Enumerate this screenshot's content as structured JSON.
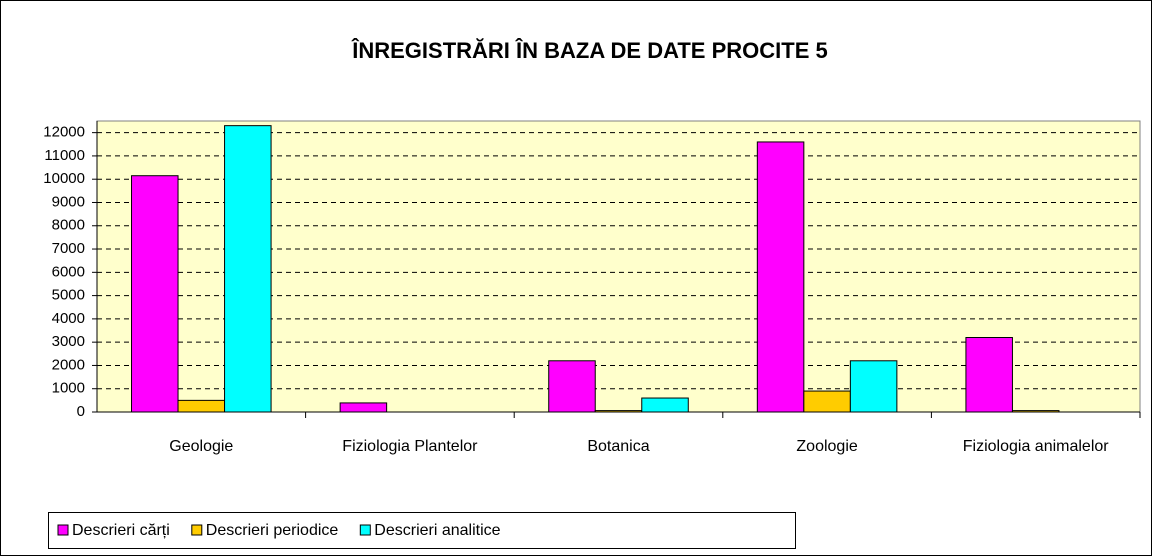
{
  "chart_data": {
    "type": "bar",
    "title": "ÎNREGISTRĂRI ÎN BAZA DE DATE PROCITE 5",
    "categories": [
      "Geologie",
      "Fiziologia Plantelor",
      "Botanica",
      "Zoologie",
      "Fiziologia animalelor"
    ],
    "series": [
      {
        "name": "Descrieri cărți",
        "color": "#ff00ff",
        "values": [
          10150,
          390,
          2200,
          11600,
          3200
        ]
      },
      {
        "name": "Descrieri periodice",
        "color": "#ffcc00",
        "values": [
          500,
          0,
          60,
          900,
          60
        ]
      },
      {
        "name": "Descrieri analitice",
        "color": "#00ffff",
        "values": [
          12300,
          0,
          600,
          2200,
          0
        ]
      }
    ],
    "ylim": [
      0,
      12500
    ],
    "yticks": [
      0,
      1000,
      2000,
      3000,
      4000,
      5000,
      6000,
      7000,
      8000,
      9000,
      10000,
      11000,
      12000
    ],
    "grid": true,
    "background": "#ffffcc",
    "legend": "bottom"
  }
}
